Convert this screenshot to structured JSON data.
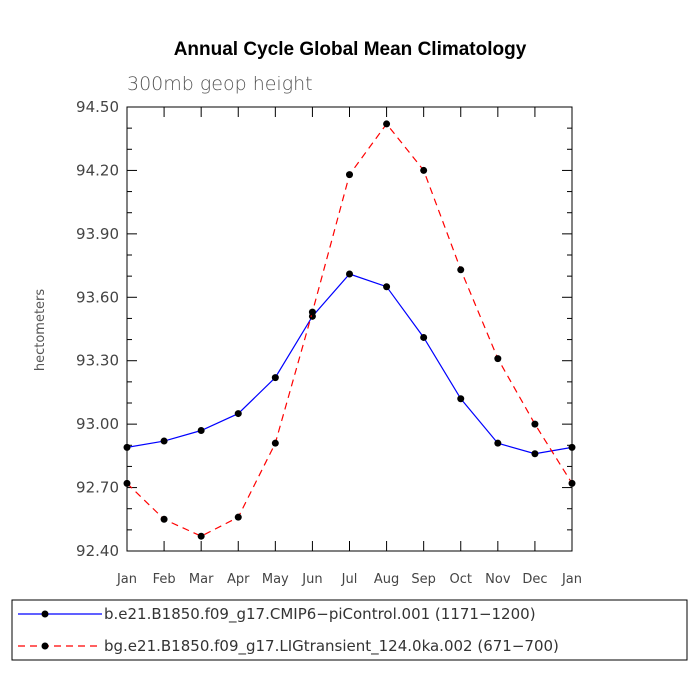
{
  "chart_data": {
    "type": "line",
    "title": "Annual Cycle Global Mean Climatology",
    "subtitle": "300mb geop height",
    "xlabel": "",
    "ylabel": "hectometers",
    "categories": [
      "Jan",
      "Feb",
      "Mar",
      "Apr",
      "May",
      "Jun",
      "Jul",
      "Aug",
      "Sep",
      "Oct",
      "Nov",
      "Dec",
      "Jan"
    ],
    "ylim": [
      92.4,
      94.5
    ],
    "yticks": [
      "92.40",
      "92.70",
      "93.00",
      "93.30",
      "93.60",
      "93.90",
      "94.20",
      "94.50"
    ],
    "legend_position": "bottom",
    "series": [
      {
        "name": "b.e21.B1850.f09_g17.CMIP6-piControl.001 (1171-1200)",
        "legend_label": "b.e21.B1850.f09_g17.CMIP6−piControl.001 (1171−1200)",
        "color": "#0000ff",
        "dash": "solid",
        "values": [
          92.89,
          92.92,
          92.97,
          93.05,
          93.22,
          93.51,
          93.71,
          93.65,
          93.41,
          93.12,
          92.91,
          92.86,
          92.89
        ]
      },
      {
        "name": "bg.e21.B1850.f09_g17.LIGtransient_124.0ka.002 (671-700)",
        "legend_label": "bg.e21.B1850.f09_g17.LIGtransient_124.0ka.002 (671−700)",
        "color": "#ff0000",
        "dash": "dashed",
        "values": [
          92.72,
          92.55,
          92.47,
          92.56,
          92.91,
          93.53,
          94.18,
          94.42,
          94.2,
          93.73,
          93.31,
          93.0,
          92.72
        ]
      }
    ]
  }
}
